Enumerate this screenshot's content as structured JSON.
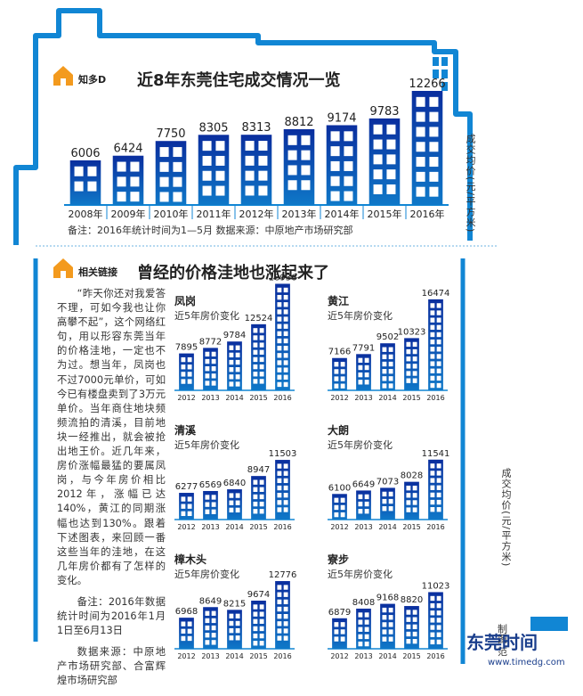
{
  "colors": {
    "bar_top": "#0a2e9e",
    "bar_bottom": "#0f78c8",
    "frame": "#1186d4",
    "house_icon": "#f39a1e"
  },
  "section1": {
    "badge": "知多D",
    "title": "近8年东莞住宅成交情况一览",
    "unit_label": "成交均价(元/平方米)",
    "note": "备注：2016年统计时间为1—5月  数据来源：中原地产市场研究部"
  },
  "section2": {
    "badge": "相关链接",
    "title": "曾经的价格洼地也涨起来了",
    "unit_label": "成交均价(元/平方米)",
    "paragraphs": [
      "“昨天你还对我爱答不理，可如今我也让你高攀不起”，这个网络红句，用以形容东莞当年的价格洼地，一定也不为过。想当年，凤岗也不过7000元单价，可如今已有楼盘卖到了3万元单价。当年商住地块频频流拍的清溪，目前地块一经推出，就会被抢出地王价。近几年来，房价涨幅最猛的要属凤岗，与今年房价相比2012年，涨幅已达140%，黄江的同期涨幅也达到130%。跟着下述图表，来回顾一番这些当年的洼地，在这几年房价都有了怎样的变化。",
      "备注：2016年数据统计时间为2016年1月1日至6月13日",
      "数据来源：中原地产市场研究部、合富辉煌市场研究部"
    ]
  },
  "credit": {
    "label": "制图 范",
    "logo": "东莞时间",
    "url": "www.timedg.com"
  },
  "chart_data": [
    {
      "type": "bar",
      "title": "近8年东莞住宅成交情况一览",
      "ylabel": "成交均价(元/平方米)",
      "categories": [
        "2008年",
        "2009年",
        "2010年",
        "2011年",
        "2012年",
        "2013年",
        "2014年",
        "2015年",
        "2016年"
      ],
      "values": [
        6006,
        6424,
        7750,
        8305,
        8313,
        8812,
        9174,
        9783,
        12266
      ]
    },
    {
      "type": "bar",
      "title": "凤岗",
      "subtitle": "近5年房价变化",
      "categories": [
        "2012",
        "2013",
        "2014",
        "2015",
        "2016"
      ],
      "values": [
        7895,
        8772,
        9784,
        12524,
        18936
      ]
    },
    {
      "type": "bar",
      "title": "黄江",
      "subtitle": "近5年房价变化",
      "categories": [
        "2012",
        "2013",
        "2014",
        "2015",
        "2016"
      ],
      "values": [
        7166,
        7791,
        9502,
        10323,
        16474
      ]
    },
    {
      "type": "bar",
      "title": "清溪",
      "subtitle": "近5年房价变化",
      "categories": [
        "2012",
        "2013",
        "2014",
        "2015",
        "2016"
      ],
      "values": [
        6277,
        6569,
        6840,
        8947,
        11503
      ]
    },
    {
      "type": "bar",
      "title": "大朗",
      "subtitle": "近5年房价变化",
      "categories": [
        "2012",
        "2013",
        "2014",
        "2015",
        "2016"
      ],
      "values": [
        6100,
        6649,
        7073,
        8028,
        11541
      ]
    },
    {
      "type": "bar",
      "title": "樟木头",
      "subtitle": "近5年房价变化",
      "categories": [
        "2012",
        "2013",
        "2014",
        "2015",
        "2016"
      ],
      "values": [
        6968,
        8649,
        8215,
        9674,
        12776
      ]
    },
    {
      "type": "bar",
      "title": "寮步",
      "subtitle": "近5年房价变化",
      "categories": [
        "2012",
        "2013",
        "2014",
        "2015",
        "2016"
      ],
      "values": [
        6879,
        8408,
        9168,
        8820,
        11023
      ]
    }
  ]
}
